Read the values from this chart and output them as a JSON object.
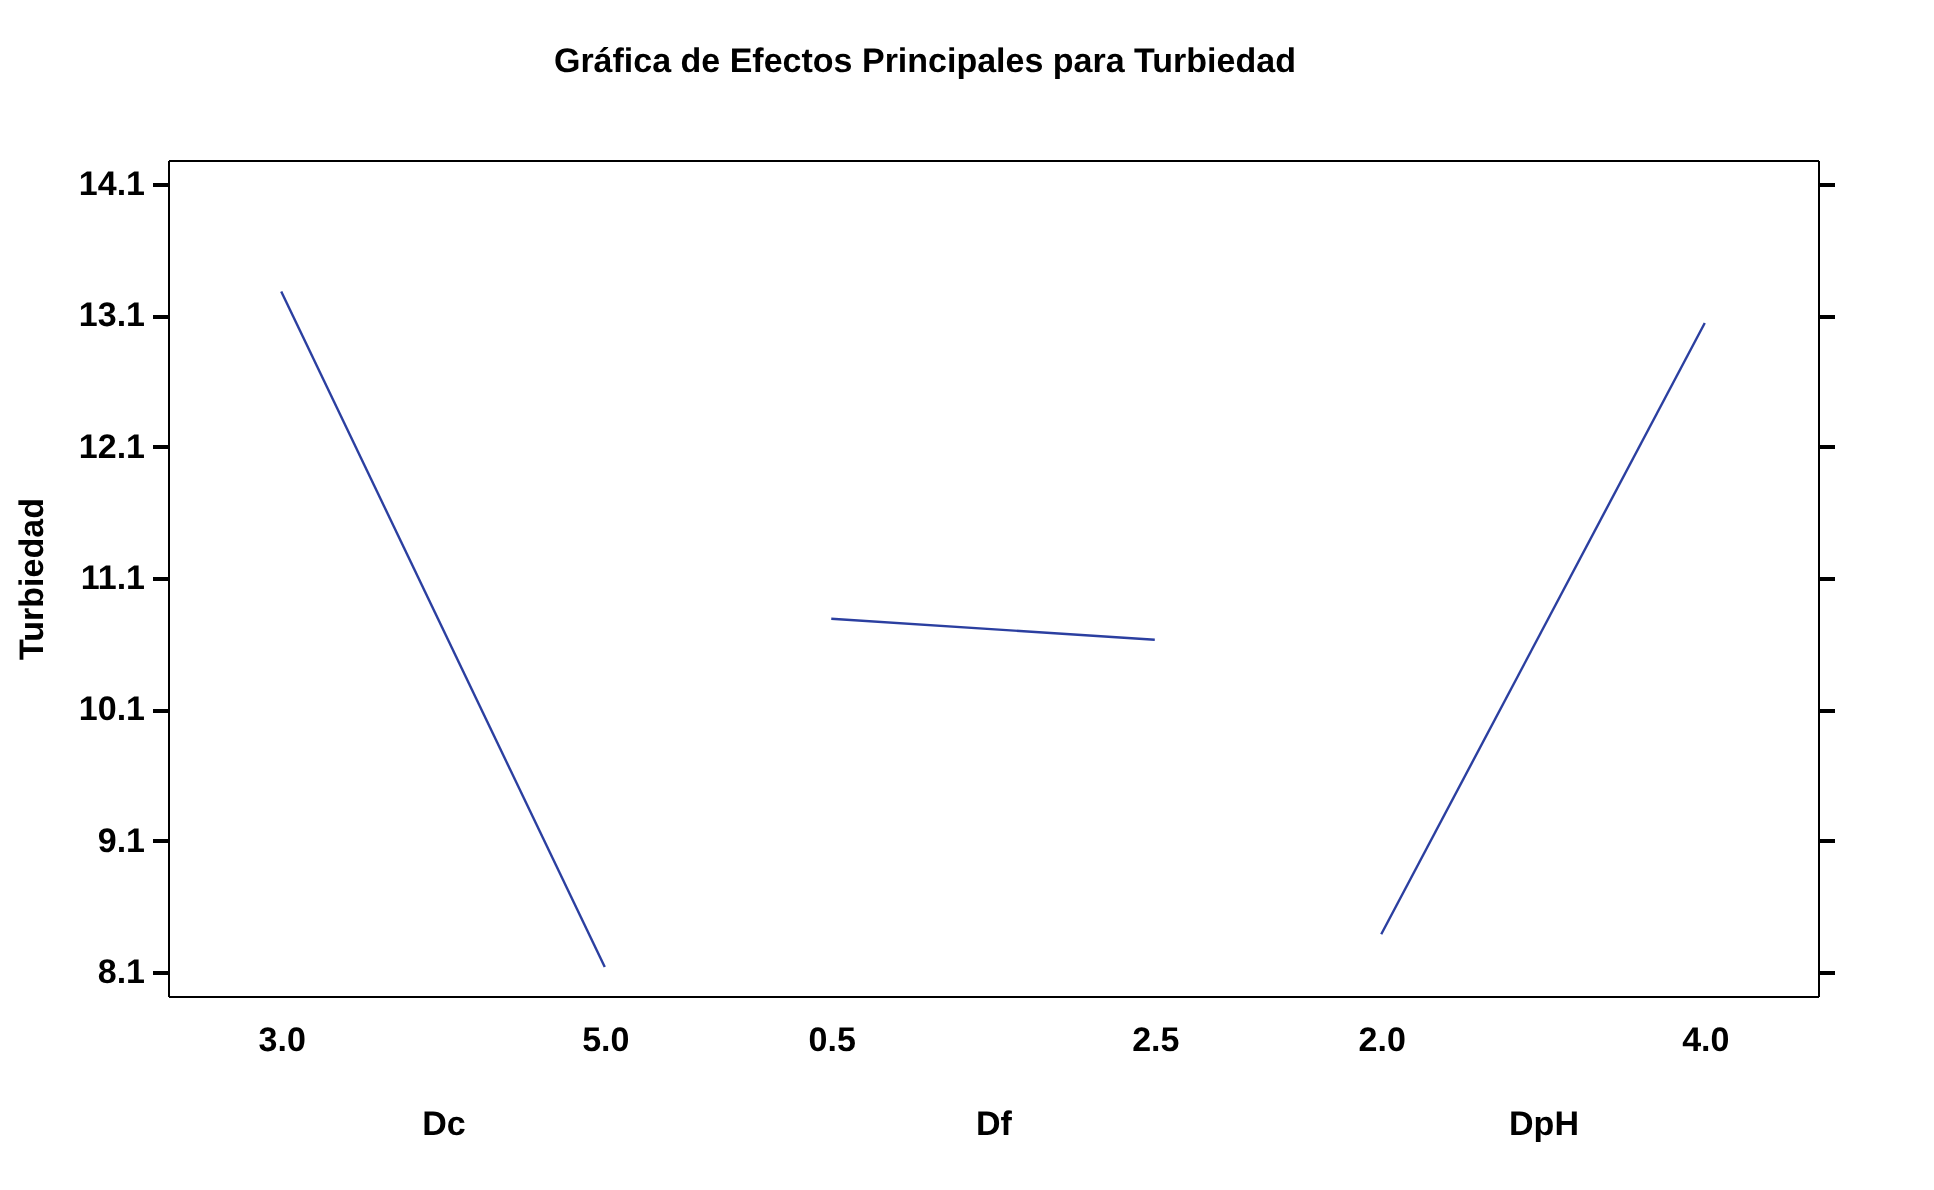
{
  "chart_data": [
    {
      "type": "line",
      "title": "Gráfica de Efectos Principales para Turbiedad",
      "xlabel": "Dc",
      "ylabel": "Turbiedad",
      "categories": [
        "3.0",
        "5.0"
      ],
      "series": [
        {
          "color": "#2b3fa0",
          "values": [
            13.28,
            8.14
          ]
        }
      ],
      "ylim": [
        7.92,
        14.28
      ],
      "yticks": [
        8.1,
        9.1,
        10.1,
        11.1,
        12.1,
        13.1,
        14.1
      ],
      "legend": false
    },
    {
      "type": "line",
      "xlabel": "Df",
      "categories": [
        "0.5",
        "2.5"
      ],
      "series": [
        {
          "color": "#2b3fa0",
          "values": [
            10.79,
            10.63
          ]
        }
      ],
      "ylim": [
        7.92,
        14.28
      ],
      "yticks": [
        8.1,
        9.1,
        10.1,
        11.1,
        12.1,
        13.1,
        14.1
      ],
      "tick_labels": "x",
      "legend": false
    },
    {
      "type": "line",
      "xlabel": "DpH",
      "categories": [
        "2.0",
        "4.0"
      ],
      "series": [
        {
          "color": "#2b3fa0",
          "values": [
            8.39,
            13.04
          ]
        }
      ],
      "ylim": [
        7.92,
        14.28
      ],
      "yticks": [
        8.1,
        9.1,
        10.1,
        11.1,
        12.1,
        13.1,
        14.1
      ],
      "tick_labels": "x",
      "legend": false
    }
  ]
}
